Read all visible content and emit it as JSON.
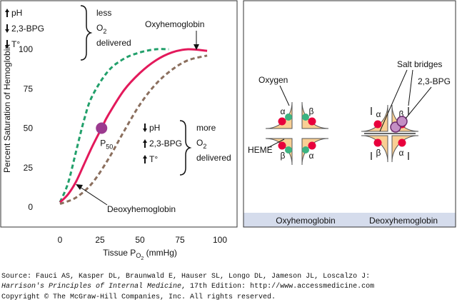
{
  "chart_data": {
    "type": "line",
    "x_label": {
      "text": "Tissue P",
      "sub": "O",
      "subsub": "2",
      "tail": " (mmHg)"
    },
    "y_label": "Percent Saturation of Hemoglobin",
    "xlim": [
      -12,
      112
    ],
    "xticks": [
      0,
      25,
      50,
      75,
      100
    ],
    "ylim": [
      -5,
      110
    ],
    "yticks": [
      0,
      25,
      50,
      75,
      100
    ],
    "series": [
      {
        "color": "#22a06b",
        "dash": true,
        "x": [
          0,
          5,
          10,
          15,
          20,
          30,
          40,
          50,
          60,
          68
        ],
        "values": [
          3,
          15,
          35,
          55,
          70,
          86,
          94,
          98,
          100,
          100
        ]
      },
      {
        "color": "#e3195b",
        "dash": false,
        "x": [
          0,
          5,
          10,
          15,
          20,
          26,
          30,
          40,
          50,
          60,
          70,
          80,
          92
        ],
        "values": [
          3,
          8,
          16,
          27,
          38,
          50,
          58,
          74,
          85,
          93,
          98,
          100,
          99
        ]
      },
      {
        "color": "#8b6f5e",
        "dash": true,
        "x": [
          0,
          10,
          20,
          30,
          40,
          50,
          60,
          70,
          80,
          92
        ],
        "values": [
          2,
          6,
          15,
          30,
          48,
          65,
          78,
          87,
          93,
          96
        ]
      }
    ],
    "p50": {
      "x": 26,
      "value": 50,
      "label": {
        "text": "P",
        "sub": "50"
      },
      "color": "#9b3a8f"
    },
    "annotations": {
      "oxy": "Oxyhemoglobin",
      "deoxy": "Deoxyhemoglobin"
    },
    "left_shift": {
      "items": [
        "pH",
        "2,3-BPG",
        "T°"
      ],
      "lines": [
        {
          "text": "less"
        },
        {
          "text": "O",
          "sub": "2"
        },
        {
          "text": "delivered"
        }
      ]
    },
    "right_shift": {
      "items": [
        "pH",
        "2,3-BPG",
        "T°"
      ],
      "lines": [
        {
          "text": "more"
        },
        {
          "text": "O",
          "sub": "2"
        },
        {
          "text": "delivered"
        }
      ]
    }
  },
  "diagram": {
    "subunits": [
      "α",
      "β",
      "β",
      "α"
    ],
    "oxygen": "Oxygen",
    "heme": "HEME",
    "salt_bridges": "Salt bridges",
    "bpg": "2,3-BPG",
    "captions": [
      "Oxyhemoglobin",
      "Deoxyhemoglobin"
    ]
  },
  "source": {
    "line1": "Source: Fauci AS, Kasper DL, Braunwald E, Hauser SL, Longo DL, Jameson JL, Loscalzo J:",
    "book": "Harrison's Principles of Internal Medicine",
    "line2": ", 17th Edition: http://www.accessmedicine.com",
    "line3": "Copyright © The McGraw-Hill Companies, Inc. All rights reserved."
  }
}
